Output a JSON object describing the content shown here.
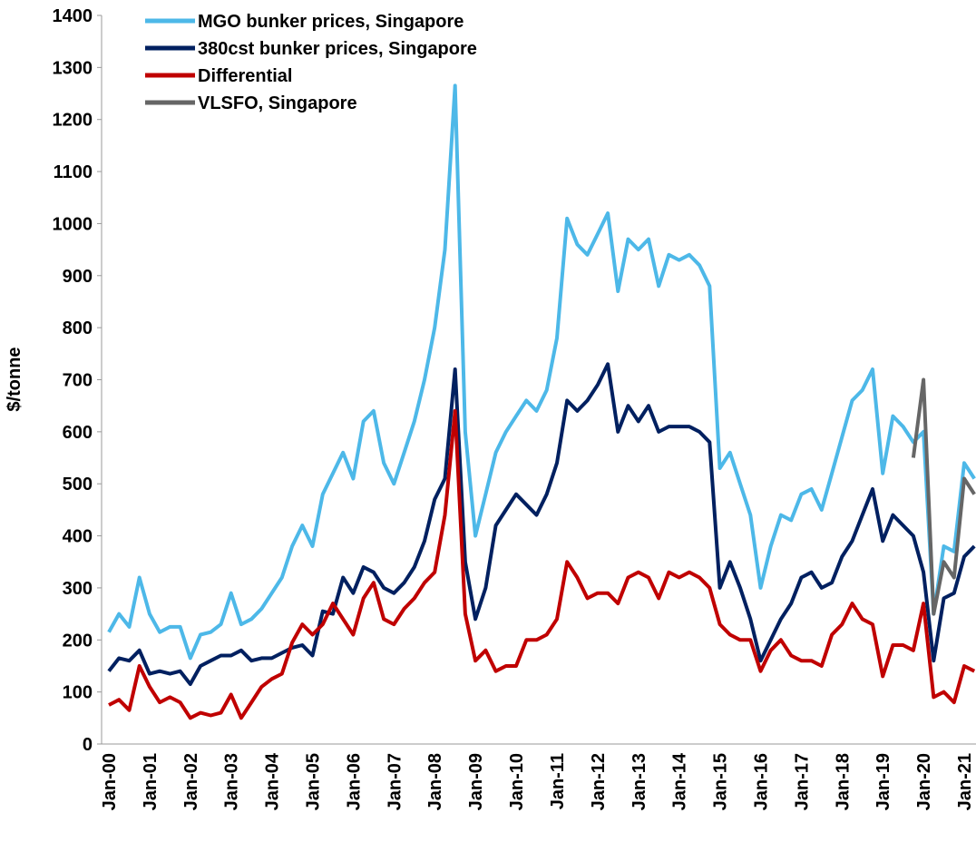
{
  "chart_data": {
    "type": "line",
    "y_label": "$/tonne",
    "categories": [
      "Jan-00",
      null,
      null,
      null,
      "Jan-01",
      null,
      null,
      null,
      "Jan-02",
      null,
      null,
      null,
      "Jan-03",
      null,
      null,
      null,
      "Jan-04",
      null,
      null,
      null,
      "Jan-05",
      null,
      null,
      null,
      "Jan-06",
      null,
      null,
      null,
      "Jan-07",
      null,
      null,
      null,
      "Jan-08",
      null,
      null,
      null,
      "Jan-09",
      null,
      null,
      null,
      "Jan-10",
      null,
      null,
      null,
      "Jan-11",
      null,
      null,
      null,
      "Jan-12",
      null,
      null,
      null,
      "Jan-13",
      null,
      null,
      null,
      "Jan-14",
      null,
      null,
      null,
      "Jan-15",
      null,
      null,
      null,
      "Jan-16",
      null,
      null,
      null,
      "Jan-17",
      null,
      null,
      null,
      "Jan-18",
      null,
      null,
      null,
      "Jan-19",
      null,
      null,
      null,
      "Jan-20",
      null,
      null,
      null,
      "Jan-21",
      null
    ],
    "series": [
      {
        "name": "MGO bunker prices, Singapore",
        "color": "#4db8e8",
        "values": [
          215,
          250,
          225,
          320,
          250,
          215,
          225,
          225,
          165,
          210,
          215,
          230,
          290,
          230,
          240,
          260,
          290,
          320,
          380,
          420,
          380,
          480,
          520,
          560,
          510,
          620,
          640,
          540,
          500,
          560,
          620,
          700,
          800,
          950,
          1265,
          600,
          400,
          480,
          560,
          600,
          630,
          660,
          640,
          680,
          780,
          1010,
          960,
          940,
          980,
          1020,
          870,
          970,
          950,
          970,
          880,
          940,
          930,
          940,
          920,
          880,
          530,
          560,
          500,
          440,
          300,
          380,
          440,
          430,
          480,
          490,
          450,
          520,
          590,
          660,
          680,
          720,
          520,
          630,
          610,
          580,
          600,
          250,
          380,
          370,
          540,
          510
        ]
      },
      {
        "name": "380cst bunker prices, Singapore",
        "color": "#002060",
        "values": [
          140,
          165,
          160,
          180,
          135,
          140,
          135,
          140,
          115,
          150,
          160,
          170,
          170,
          180,
          160,
          165,
          165,
          175,
          185,
          190,
          170,
          255,
          250,
          320,
          290,
          340,
          330,
          300,
          290,
          310,
          340,
          390,
          470,
          510,
          720,
          350,
          240,
          300,
          420,
          450,
          480,
          460,
          440,
          480,
          540,
          660,
          640,
          660,
          690,
          730,
          600,
          650,
          620,
          650,
          600,
          610,
          610,
          610,
          600,
          580,
          300,
          350,
          300,
          240,
          160,
          200,
          240,
          270,
          320,
          330,
          300,
          310,
          360,
          390,
          440,
          490,
          390,
          440,
          420,
          400,
          330,
          160,
          280,
          290,
          360,
          380
        ]
      },
      {
        "name": "Differential",
        "color": "#c00000",
        "values": [
          75,
          85,
          65,
          150,
          110,
          80,
          90,
          80,
          50,
          60,
          55,
          60,
          95,
          50,
          80,
          110,
          125,
          135,
          195,
          230,
          210,
          230,
          270,
          240,
          210,
          280,
          310,
          240,
          230,
          260,
          280,
          310,
          330,
          440,
          640,
          250,
          160,
          180,
          140,
          150,
          150,
          200,
          200,
          210,
          240,
          350,
          320,
          280,
          290,
          290,
          270,
          320,
          330,
          320,
          280,
          330,
          320,
          330,
          320,
          300,
          230,
          210,
          200,
          200,
          140,
          180,
          200,
          170,
          160,
          160,
          150,
          210,
          230,
          270,
          240,
          230,
          130,
          190,
          190,
          180,
          270,
          90,
          100,
          80,
          150,
          140
        ]
      },
      {
        "name": "VLSFO, Singapore",
        "color": "#666666",
        "values": [
          null,
          null,
          null,
          null,
          null,
          null,
          null,
          null,
          null,
          null,
          null,
          null,
          null,
          null,
          null,
          null,
          null,
          null,
          null,
          null,
          null,
          null,
          null,
          null,
          null,
          null,
          null,
          null,
          null,
          null,
          null,
          null,
          null,
          null,
          null,
          null,
          null,
          null,
          null,
          null,
          null,
          null,
          null,
          null,
          null,
          null,
          null,
          null,
          null,
          null,
          null,
          null,
          null,
          null,
          null,
          null,
          null,
          null,
          null,
          null,
          null,
          null,
          null,
          null,
          null,
          null,
          null,
          null,
          null,
          null,
          null,
          null,
          null,
          null,
          null,
          null,
          null,
          null,
          null,
          550,
          700,
          250,
          350,
          320,
          510,
          480
        ]
      }
    ],
    "ylim": [
      0,
      1400
    ],
    "yticks": [
      0,
      100,
      200,
      300,
      400,
      500,
      600,
      700,
      800,
      900,
      1000,
      1100,
      1200,
      1300,
      1400
    ],
    "legend": "top-left"
  }
}
